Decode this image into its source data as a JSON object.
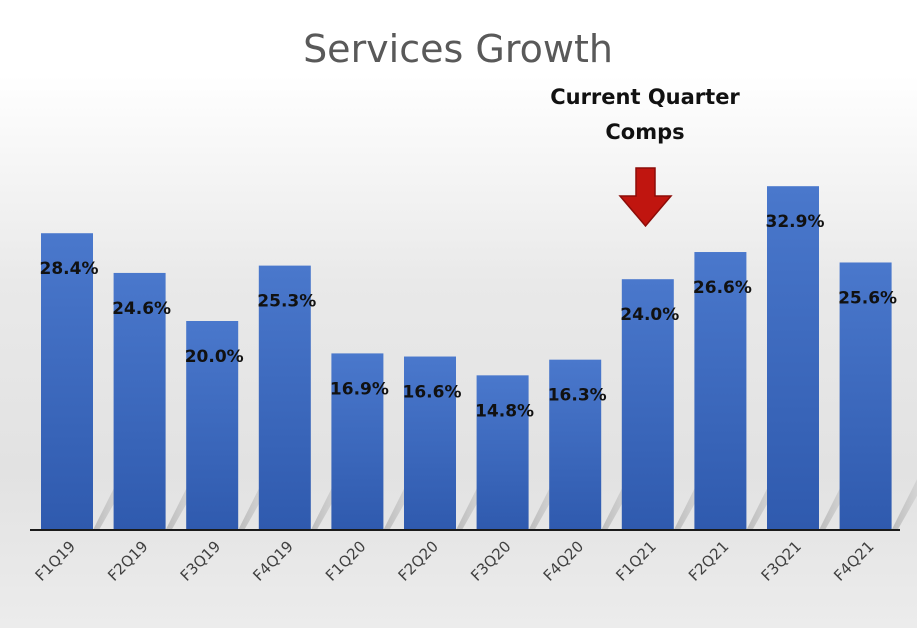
{
  "chart_data": {
    "type": "bar",
    "title": "Services Growth",
    "xlabel": "",
    "ylabel": "",
    "ylim": [
      0,
      35
    ],
    "categories": [
      "F1Q19",
      "F2Q19",
      "F3Q19",
      "F4Q19",
      "F1Q20",
      "F2Q20",
      "F3Q20",
      "F4Q20",
      "F1Q21",
      "F2Q21",
      "F3Q21",
      "F4Q21"
    ],
    "values": [
      28.4,
      24.6,
      20.0,
      25.3,
      16.9,
      16.6,
      14.8,
      16.3,
      24.0,
      26.6,
      32.9,
      25.6
    ],
    "value_labels": [
      "28.4%",
      "24.6%",
      "20.0%",
      "25.3%",
      "16.9%",
      "16.6%",
      "14.8%",
      "16.3%",
      "24.0%",
      "26.6%",
      "32.9%",
      "25.6%"
    ],
    "annotation": {
      "lines": [
        "Current Quarter",
        "Comps"
      ],
      "target_category": "F1Q21"
    },
    "colors": {
      "bar_top": "#4a78cc",
      "bar_bottom": "#2f5aae",
      "arrow": "#c0150f",
      "axis": "#1a1a1a"
    }
  }
}
